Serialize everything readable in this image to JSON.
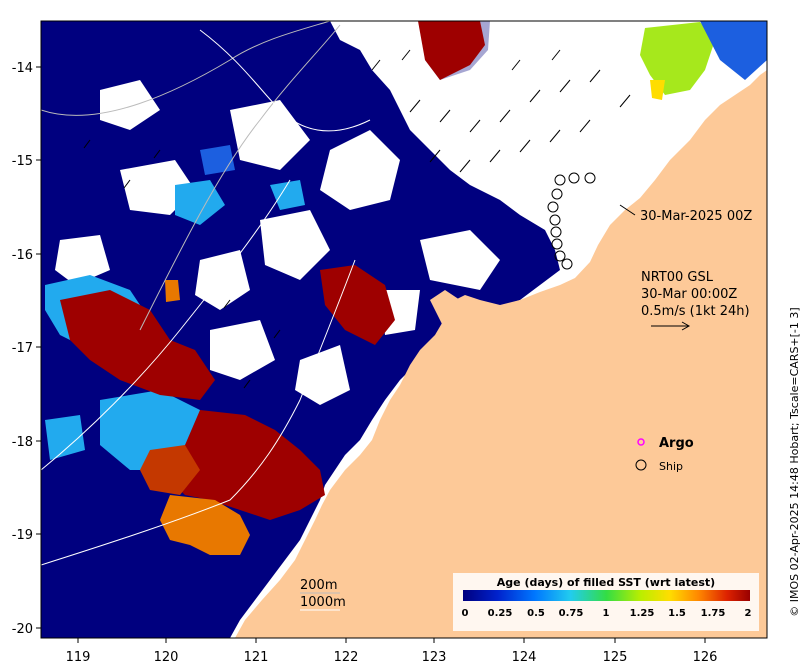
{
  "map": {
    "x_ticks": [
      "119",
      "120",
      "121",
      "122",
      "123",
      "124",
      "125",
      "126"
    ],
    "y_ticks": [
      "-14",
      "-15",
      "-16",
      "-17",
      "-18",
      "-19",
      "-20"
    ],
    "lon_range": [
      118.6,
      126.7
    ],
    "lat_range": [
      -20.1,
      -13.4
    ]
  },
  "annotations": {
    "ship_date": "30-Mar-2025 00Z",
    "product": "NRT00 GSL",
    "product_time": "30-Mar 00:00Z",
    "scale": "0.5m/s (1kt 24h)",
    "contour_200": "200m",
    "contour_1000": "1000m",
    "credit": "© IMOS 02-Apr-2025 14:48 Hobart; Tscale=CARS+[-1 3]"
  },
  "legend": {
    "argo_label": "Argo",
    "ship_label": "Ship",
    "colorbar_title": "Age (days) of filled SST (wrt latest)",
    "colorbar_ticks": [
      "0",
      "0.25",
      "0.5",
      "0.75",
      "1",
      "1.25",
      "1.5",
      "1.75",
      "2"
    ],
    "colorbar_colors": [
      "#00007f",
      "#0022cc",
      "#0077ff",
      "#22ccee",
      "#33dd44",
      "#bbee00",
      "#ffdd00",
      "#ff8800",
      "#dd2200",
      "#990000"
    ],
    "argo_color": "#ff00ff"
  },
  "colors": {
    "land": "#fdc998",
    "age_0": "#00007f",
    "age_0_3": "#1c5fe0",
    "age_0_5": "#22aaee",
    "age_1_3": "#a6e81c",
    "age_1_6": "#e87800",
    "age_1_8": "#c43800",
    "age_2": "#9e0000"
  }
}
